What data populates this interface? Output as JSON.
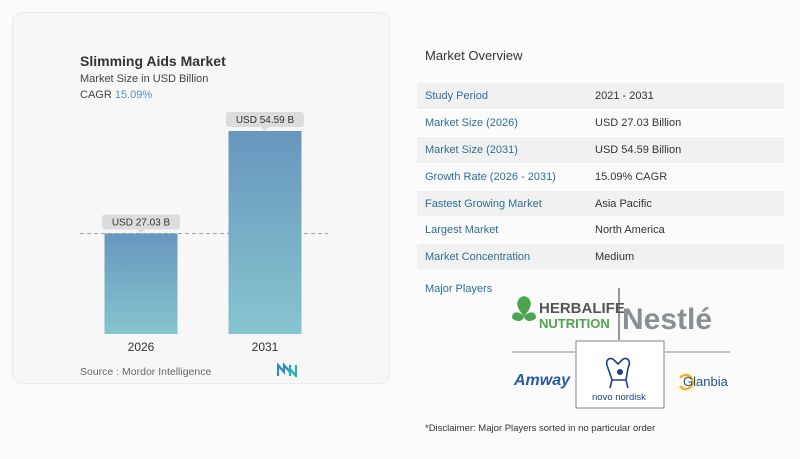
{
  "chart_data": {
    "type": "bar",
    "title": "Slimming Aids Market",
    "subtitle": "Market Size in USD Billion",
    "cagr_label": "CAGR",
    "cagr_value": "15.09%",
    "categories": [
      "2026",
      "2031"
    ],
    "values": [
      27.03,
      54.59
    ],
    "data_labels": [
      "USD 27.03 B",
      "USD 54.59 B"
    ],
    "ylim": [
      0,
      60
    ],
    "colors": {
      "bar_top": "#6797bd",
      "bar_bottom": "#86c5cf",
      "label_bg": "#dcdcdc",
      "dashed": "#9aa9b4"
    }
  },
  "source": "Source :  Mordor Intelligence",
  "overview": {
    "title": "Market Overview",
    "rows": [
      {
        "key": "Study Period",
        "value": "2021 - 2031"
      },
      {
        "key": "Market Size (2026)",
        "value": "USD 27.03 Billion"
      },
      {
        "key": "Market Size (2031)",
        "value": "USD 54.59 Billion"
      },
      {
        "key": "Growth Rate (2026 - 2031)",
        "value": "15.09% CAGR"
      },
      {
        "key": "Fastest Growing Market",
        "value": "Asia Pacific"
      },
      {
        "key": "Largest Market",
        "value": "North America"
      },
      {
        "key": "Market Concentration",
        "value": "Medium"
      }
    ]
  },
  "major_players": {
    "label": "Major Players",
    "logos": {
      "herbalife": [
        "HERBALIFE",
        "NUTRITION"
      ],
      "nestle": "Nestlé",
      "amway": "Amway",
      "novo": "novo nordisk",
      "glanbia": "Glanbia"
    }
  },
  "disclaimer": "*Disclaimer: Major Players sorted in no particular order",
  "accent_colors": {
    "key_text": "#2d6f95",
    "brand_green": "#4ca44f",
    "nestle_gray": "#8a8f92",
    "amway_blue": "#2a58a8",
    "novo_blue": "#1d3f8a",
    "glanbia_blue": "#1e4f8c",
    "glanbia_yellow": "#f3b21b"
  }
}
